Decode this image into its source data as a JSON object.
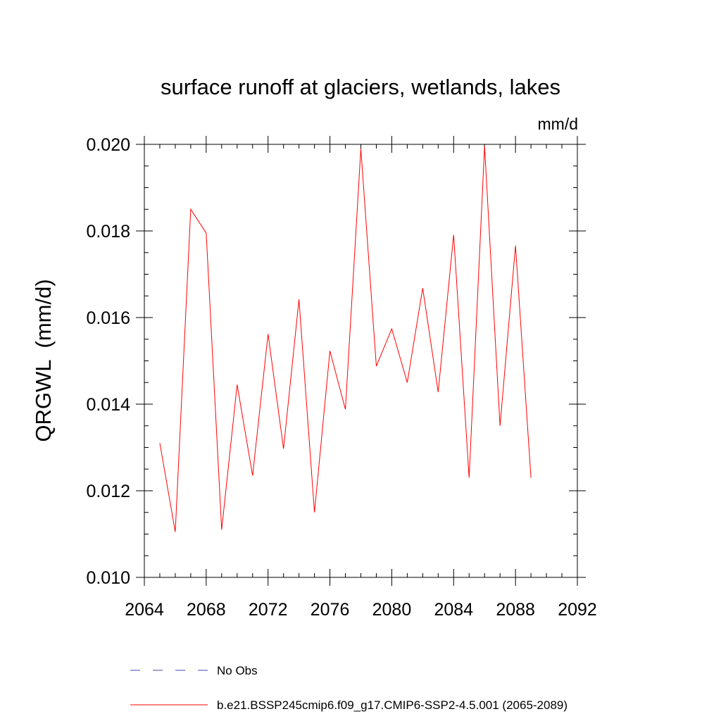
{
  "chart_data": {
    "type": "line",
    "title": "surface runoff at glaciers, wetlands, lakes",
    "units": "mm/d",
    "ylabel": "QRGWL  (mm/d)",
    "xlabel": "",
    "xlim": [
      2064,
      2092
    ],
    "ylim": [
      0.01,
      0.02
    ],
    "xticks": [
      "2064",
      "2068",
      "2072",
      "2076",
      "2080",
      "2084",
      "2088",
      "2092"
    ],
    "yticks": [
      "0.010",
      "0.012",
      "0.014",
      "0.016",
      "0.018",
      "0.020"
    ],
    "grid": false,
    "legend_position": "bottom",
    "series": [
      {
        "name": "No Obs",
        "color": "#4444aa",
        "style": "dashed",
        "x": [],
        "values": []
      },
      {
        "name": "b.e21.BSSP245cmip6.f09_g17.CMIP6-SSP2-4.5.001 (2065-2089)",
        "color": "#ff0000",
        "style": "solid",
        "x": [
          2065,
          2066,
          2067,
          2068,
          2069,
          2070,
          2071,
          2072,
          2073,
          2074,
          2075,
          2076,
          2077,
          2078,
          2079,
          2080,
          2081,
          2082,
          2083,
          2084,
          2085,
          2086,
          2087,
          2088,
          2089
        ],
        "values": [
          0.0131,
          0.01105,
          0.0185,
          0.01795,
          0.0111,
          0.01445,
          0.01235,
          0.01562,
          0.01297,
          0.01642,
          0.0115,
          0.01523,
          0.01388,
          0.0199,
          0.01488,
          0.01574,
          0.0145,
          0.01668,
          0.01428,
          0.01791,
          0.0123,
          0.01996,
          0.0135,
          0.01766,
          0.0123
        ]
      }
    ]
  }
}
